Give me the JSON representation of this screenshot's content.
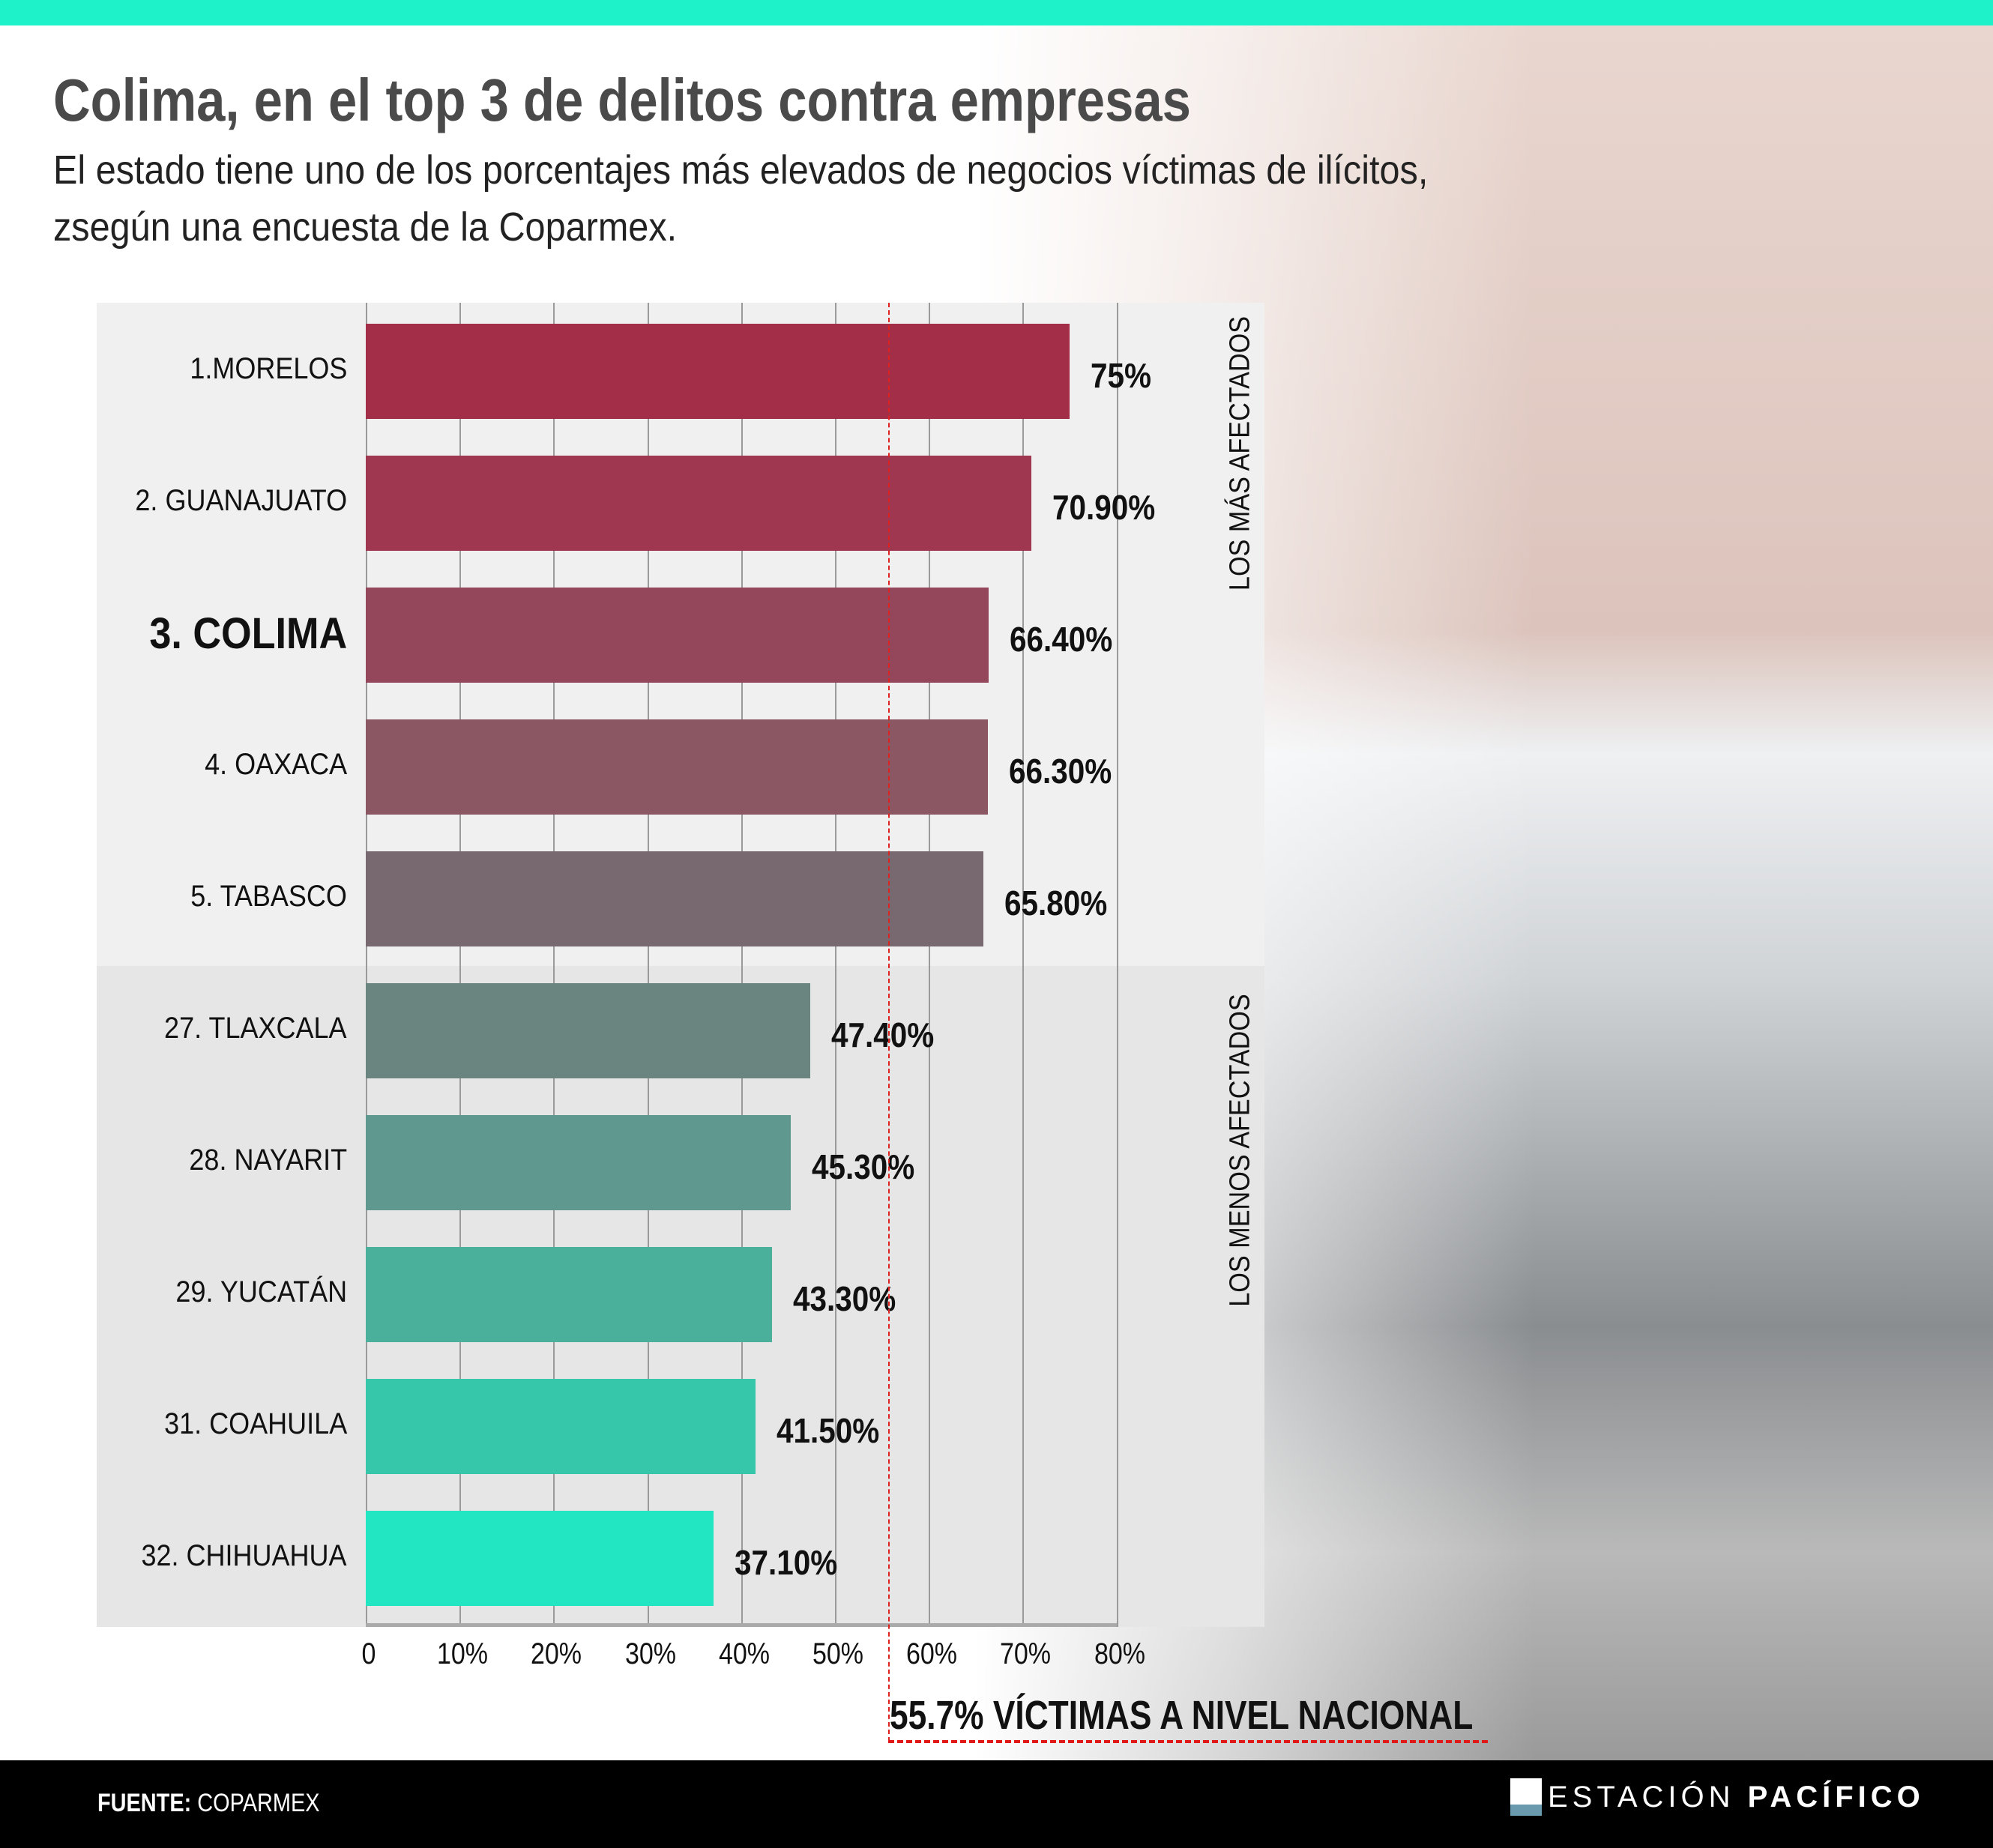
{
  "title": "Colima, en el top 3 de delitos contra empresas",
  "subtitle_lines": [
    "El estado tiene uno de los porcentajes más elevados de negocios víctimas de ilícitos,",
    "zsegún una encuesta de la Coparmex."
  ],
  "chart_data": {
    "type": "bar",
    "orientation": "horizontal",
    "categories": [
      "1.MORELOS",
      "2. GUANAJUATO",
      "3. COLIMA",
      "4. OAXACA",
      "5. TABASCO",
      "27. TLAXCALA",
      "28. NAYARIT",
      "29. YUCATÁN",
      "31. COAHUILA",
      "32. CHIHUAHUA"
    ],
    "values": [
      75,
      70.9,
      66.4,
      66.3,
      65.8,
      47.4,
      45.3,
      43.3,
      41.5,
      37.1
    ],
    "value_labels": [
      "75%",
      "70.90%",
      "66.40%",
      "66.30%",
      "65.80%",
      "47.40%",
      "45.30%",
      "43.30%",
      "41.50%",
      "37.10%"
    ],
    "colors": [
      "#a32e48",
      "#9f3750",
      "#94465a",
      "#8a5762",
      "#786870",
      "#6a857f",
      "#5e988e",
      "#4ab09c",
      "#36c6aa",
      "#22e6c2"
    ],
    "highlight": "3. COLIMA",
    "xlim": [
      0,
      80
    ],
    "x_ticks": [
      "0",
      "10%",
      "20%",
      "30%",
      "40%",
      "50%",
      "60%",
      "70%",
      "80%"
    ],
    "group_labels": [
      "LOS MÁS AFECTADOS",
      "LOS MENOS AFECTADOS"
    ],
    "reference_line": {
      "value": 55.7,
      "label": "55.7% VÍCTIMAS A NIVEL NACIONAL",
      "color": "#e01818"
    }
  },
  "footer": {
    "source_label": "FUENTE:",
    "source": "COPARMEX",
    "brand_light": "ESTACIÓN",
    "brand_bold": "PACÍFICO"
  },
  "accent": "#1ef2c8"
}
